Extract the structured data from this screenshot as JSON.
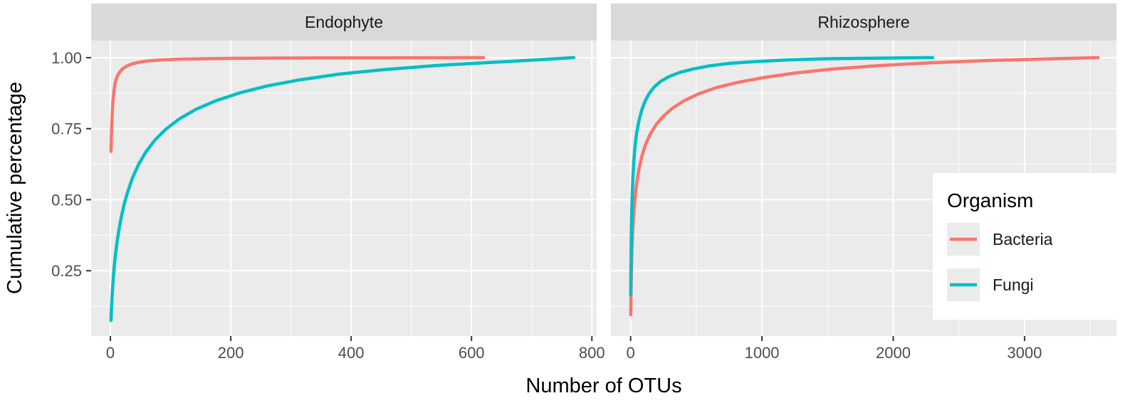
{
  "chart_data": {
    "type": "line",
    "title": "",
    "xlabel": "Number of OTUs",
    "ylabel": "Cumulative percentage",
    "ylim": [
      0.02,
      1.06
    ],
    "yticks": [
      0.25,
      0.5,
      0.75,
      1.0
    ],
    "ytick_labels": [
      "0.25",
      "0.50",
      "0.75",
      "1.00"
    ],
    "yminor": [
      0.125,
      0.375,
      0.625,
      0.875
    ],
    "grid": true,
    "legend": {
      "title": "Organism",
      "entries": [
        "Bacteria",
        "Fungi"
      ],
      "position": "right-inside"
    },
    "colors": {
      "Bacteria": "#F8766D",
      "Fungi": "#00BFC4"
    },
    "style": {
      "panel_bg": "#EBEBEB",
      "strip_bg": "#D9D9D9",
      "grid_color": "#FFFFFF",
      "key_bg": "#EBEBEB",
      "tick_color": "#333333",
      "tick_label_color": "#4D4D4D",
      "text_color": "#1A1A1A",
      "legend_bg": "#FFFFFF"
    },
    "panels": [
      {
        "label": "Endophyte",
        "xlim": [
          -32,
          808
        ],
        "xticks": [
          0,
          200,
          400,
          600,
          800
        ],
        "xtick_labels": [
          "0",
          "200",
          "400",
          "600",
          "800"
        ],
        "xminor": [
          100,
          300,
          500,
          700
        ],
        "series": [
          {
            "name": "Bacteria",
            "points": [
              [
                1,
                0.67
              ],
              [
                2,
                0.745
              ],
              [
                3,
                0.8
              ],
              [
                4,
                0.84
              ],
              [
                6,
                0.885
              ],
              [
                8,
                0.912
              ],
              [
                11,
                0.932
              ],
              [
                15,
                0.948
              ],
              [
                20,
                0.96
              ],
              [
                27,
                0.97
              ],
              [
                36,
                0.978
              ],
              [
                48,
                0.984
              ],
              [
                64,
                0.9885
              ],
              [
                85,
                0.992
              ],
              [
                115,
                0.9945
              ],
              [
                155,
                0.9962
              ],
              [
                210,
                0.9975
              ],
              [
                280,
                0.9985
              ],
              [
                370,
                0.9992
              ],
              [
                480,
                0.9997
              ],
              [
                620,
                1.0
              ]
            ]
          },
          {
            "name": "Fungi",
            "points": [
              [
                1,
                0.075
              ],
              [
                2,
                0.125
              ],
              [
                3,
                0.165
              ],
              [
                4,
                0.2
              ],
              [
                6,
                0.255
              ],
              [
                8,
                0.3
              ],
              [
                11,
                0.35
              ],
              [
                14,
                0.392
              ],
              [
                18,
                0.438
              ],
              [
                23,
                0.485
              ],
              [
                29,
                0.53
              ],
              [
                37,
                0.578
              ],
              [
                47,
                0.625
              ],
              [
                59,
                0.668
              ],
              [
                74,
                0.71
              ],
              [
                92,
                0.748
              ],
              [
                115,
                0.785
              ],
              [
                142,
                0.818
              ],
              [
                175,
                0.848
              ],
              [
                215,
                0.876
              ],
              [
                260,
                0.9
              ],
              [
                315,
                0.922
              ],
              [
                380,
                0.942
              ],
              [
                455,
                0.958
              ],
              [
                540,
                0.972
              ],
              [
                630,
                0.983
              ],
              [
                700,
                0.991
              ],
              [
                770,
                1.0
              ]
            ]
          }
        ]
      },
      {
        "label": "Rhizosphere",
        "xlim": [
          -150,
          3700
        ],
        "xticks": [
          0,
          1000,
          2000,
          3000
        ],
        "xtick_labels": [
          "0",
          "1000",
          "2000",
          "3000"
        ],
        "xminor": [
          500,
          1500,
          2500,
          3500
        ],
        "series": [
          {
            "name": "Bacteria",
            "points": [
              [
                1,
                0.095
              ],
              [
                3,
                0.17
              ],
              [
                6,
                0.25
              ],
              [
                10,
                0.32
              ],
              [
                15,
                0.38
              ],
              [
                22,
                0.44
              ],
              [
                32,
                0.5
              ],
              [
                45,
                0.555
              ],
              [
                62,
                0.605
              ],
              [
                84,
                0.65
              ],
              [
                112,
                0.692
              ],
              [
                148,
                0.73
              ],
              [
                192,
                0.763
              ],
              [
                248,
                0.793
              ],
              [
                318,
                0.822
              ],
              [
                405,
                0.848
              ],
              [
                515,
                0.872
              ],
              [
                650,
                0.894
              ],
              [
                815,
                0.913
              ],
              [
                1015,
                0.93
              ],
              [
                1255,
                0.946
              ],
              [
                1545,
                0.96
              ],
              [
                1890,
                0.972
              ],
              [
                2290,
                0.982
              ],
              [
                2740,
                0.99
              ],
              [
                3150,
                0.995
              ],
              [
                3560,
                1.0
              ]
            ]
          },
          {
            "name": "Fungi",
            "points": [
              [
                1,
                0.165
              ],
              [
                2,
                0.24
              ],
              [
                4,
                0.33
              ],
              [
                6,
                0.4
              ],
              [
                9,
                0.47
              ],
              [
                13,
                0.53
              ],
              [
                18,
                0.585
              ],
              [
                25,
                0.64
              ],
              [
                34,
                0.69
              ],
              [
                46,
                0.735
              ],
              [
                62,
                0.775
              ],
              [
                82,
                0.812
              ],
              [
                108,
                0.845
              ],
              [
                140,
                0.873
              ],
              [
                180,
                0.897
              ],
              [
                230,
                0.917
              ],
              [
                295,
                0.934
              ],
              [
                375,
                0.948
              ],
              [
                475,
                0.96
              ],
              [
                600,
                0.971
              ],
              [
                760,
                0.98
              ],
              [
                950,
                0.986
              ],
              [
                1200,
                0.992
              ],
              [
                1500,
                0.996
              ],
              [
                1850,
                0.998
              ],
              [
                2300,
                1.0
              ]
            ]
          }
        ]
      }
    ]
  }
}
